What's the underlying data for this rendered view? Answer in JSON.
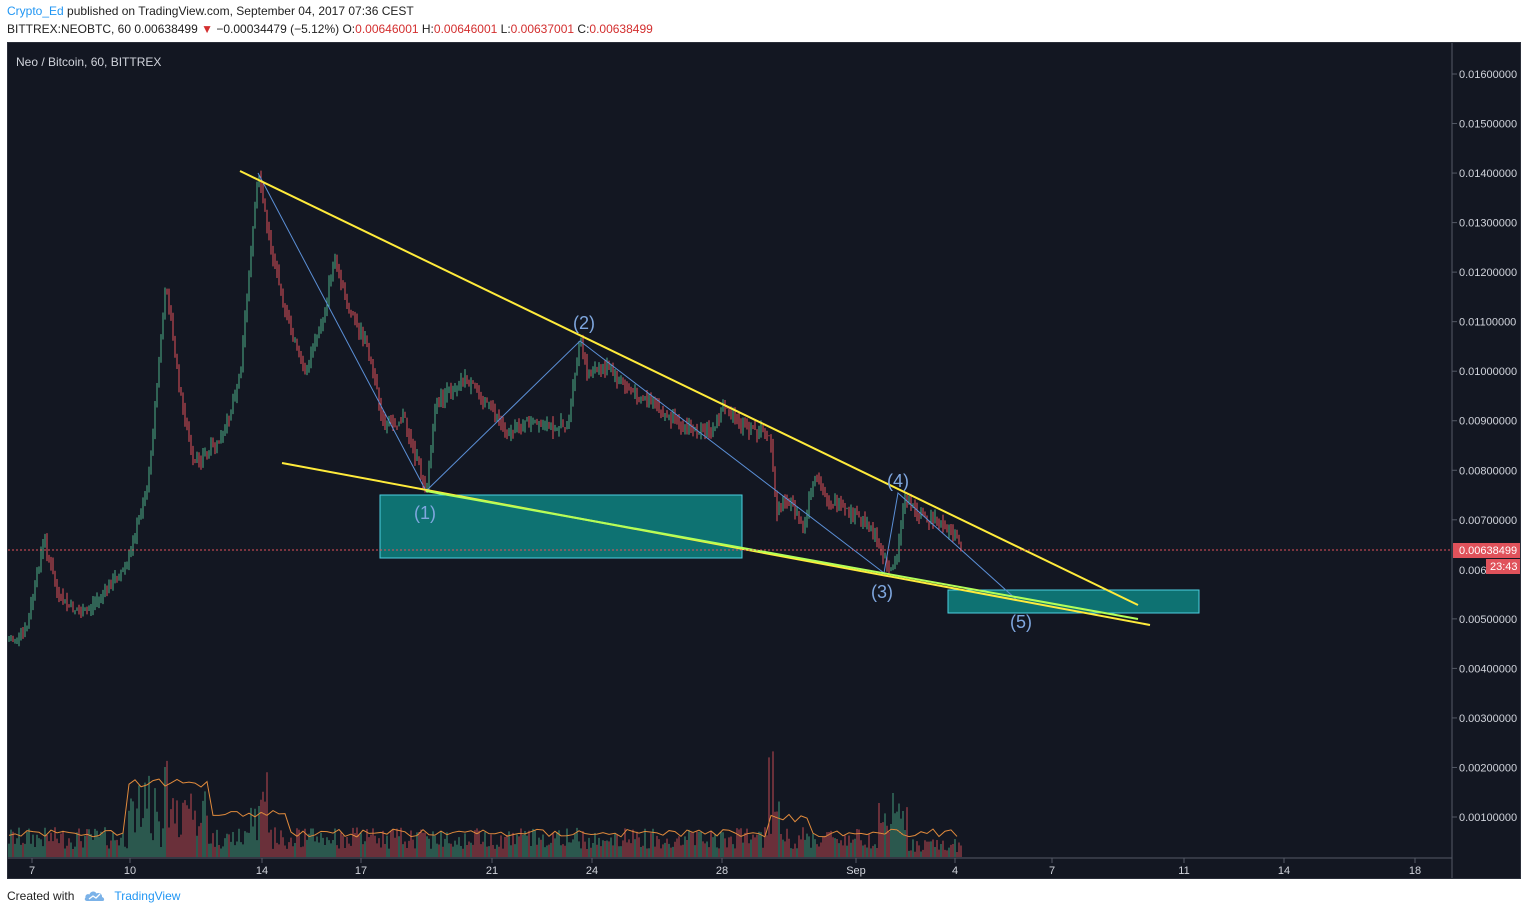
{
  "header": {
    "username": "Crypto_Ed",
    "published_text": "published on TradingView.com, September 04, 2017 07:36 CEST",
    "symbol_line_prefix": "BITTREX:NEOBTC, 60",
    "last_price": "0.00638499",
    "change_arrow": "▼",
    "change_text": "−0.00034479 (−5.12%)",
    "open_label": "O:",
    "open_value": "0.00646001",
    "high_label": "H:",
    "high_value": "0.00646001",
    "low_label": "L:",
    "low_value": "0.00637001",
    "close_label": "C:",
    "close_value": "0.00638499"
  },
  "chart": {
    "legend_title": "Neo / Bitcoin, 60, BITTREX",
    "price_axis_labels": [
      "0.01600000",
      "0.01500000",
      "0.01400000",
      "0.01300000",
      "0.01200000",
      "0.01100000",
      "0.01000000",
      "0.00900000",
      "0.00800000",
      "0.00700000",
      "0.00600000",
      "0.00500000",
      "0.00400000",
      "0.00300000",
      "0.00200000",
      "0.00100000"
    ],
    "price_axis_label_0060_short": "0.006",
    "current_price_label": "0.00638499",
    "countdown_label": "23:43",
    "time_axis_labels": [
      "7",
      "10",
      "14",
      "17",
      "21",
      "24",
      "28",
      "Sep",
      "4",
      "7",
      "11",
      "14",
      "18"
    ],
    "wave_labels": [
      "(1)",
      "(2)",
      "(3)",
      "(4)",
      "(5)"
    ],
    "colors": {
      "background": "#131722",
      "up_candle": "#4caf88",
      "down_candle": "#e0525b",
      "trendline": "#ffeb3b",
      "green_line": "#b2ff59",
      "zone_fill": "#0e7c7b",
      "zone_border": "#4dd0e1",
      "wave_line": "#5b8fd6",
      "price_line": "#e0525b"
    }
  },
  "chart_data": {
    "type": "candlestick",
    "title": "Neo / Bitcoin, 60, BITTREX",
    "ylim": [
      0.0,
      0.0165
    ],
    "x_ticks": [
      "7",
      "10",
      "14",
      "17",
      "21",
      "24",
      "28",
      "Sep",
      "4",
      "7",
      "11",
      "14",
      "18"
    ],
    "approx_close_path": [
      {
        "x": "Aug 6",
        "y": 0.0043
      },
      {
        "x": "Aug 7",
        "y": 0.0063
      },
      {
        "x": "Aug 8",
        "y": 0.0052
      },
      {
        "x": "Aug 9",
        "y": 0.0055
      },
      {
        "x": "Aug 10",
        "y": 0.007
      },
      {
        "x": "Aug 11",
        "y": 0.0115
      },
      {
        "x": "Aug 12",
        "y": 0.0085
      },
      {
        "x": "Aug 13",
        "y": 0.0105
      },
      {
        "x": "Aug 14",
        "y": 0.014
      },
      {
        "x": "Aug 15",
        "y": 0.0105
      },
      {
        "x": "Aug 16",
        "y": 0.0122
      },
      {
        "x": "Aug 17",
        "y": 0.0092
      },
      {
        "x": "Aug 19",
        "y": 0.0076
      },
      {
        "x": "Aug 20",
        "y": 0.0098
      },
      {
        "x": "Aug 22",
        "y": 0.0088
      },
      {
        "x": "Aug 24",
        "y": 0.0107
      },
      {
        "x": "Aug 26",
        "y": 0.0092
      },
      {
        "x": "Aug 28",
        "y": 0.0094
      },
      {
        "x": "Aug 29",
        "y": 0.0087
      },
      {
        "x": "Aug 30",
        "y": 0.0072
      },
      {
        "x": "Aug 31",
        "y": 0.0076
      },
      {
        "x": "Sep 1",
        "y": 0.0059
      },
      {
        "x": "Sep 2",
        "y": 0.0075
      },
      {
        "x": "Sep 3",
        "y": 0.0069
      },
      {
        "x": "Sep 4",
        "y": 0.00638499
      }
    ],
    "current_price": 0.00638499,
    "volume_ylim": [
      0,
      0.0045
    ]
  }
}
